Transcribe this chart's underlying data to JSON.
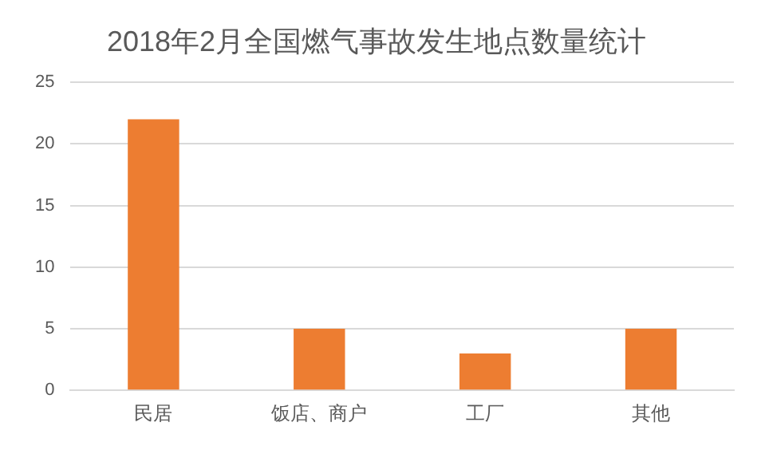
{
  "chart_data": {
    "type": "bar",
    "title": "2018年2月全国燃气事故发生地点数量统计",
    "categories": [
      "民居",
      "饭店、商户",
      "工厂",
      "其他"
    ],
    "values": [
      22,
      5,
      3,
      5
    ],
    "color": "#ed7d31",
    "ylim": [
      0,
      25
    ],
    "yticks": [
      0,
      5,
      10,
      15,
      20,
      25
    ],
    "grid": "y"
  }
}
